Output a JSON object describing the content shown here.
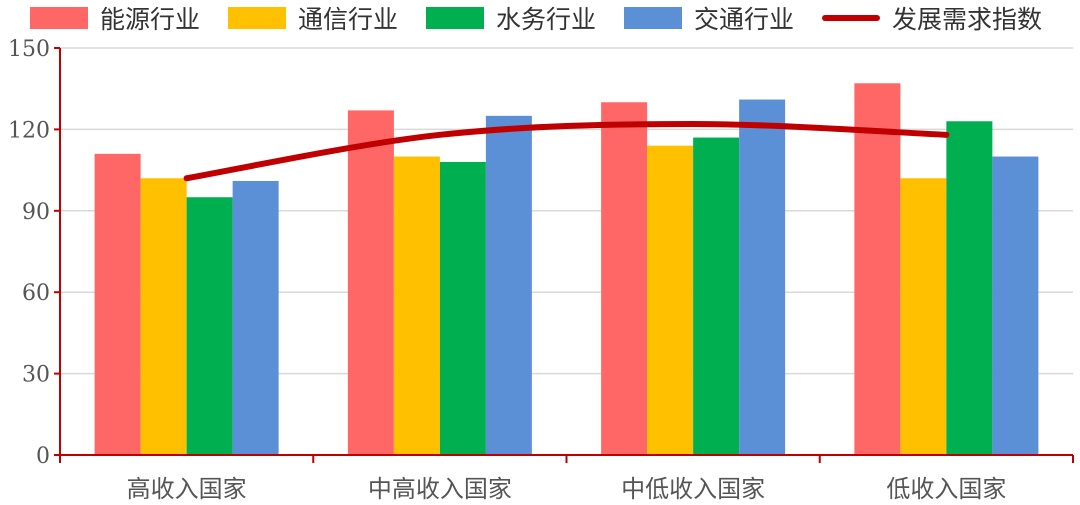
{
  "chart_data": {
    "type": "bar",
    "categories": [
      "高收入国家",
      "中高收入国家",
      "中低收入国家",
      "低收入国家"
    ],
    "series": [
      {
        "name": "能源行业",
        "kind": "bar",
        "color": "#FF6666",
        "values": [
          111,
          127,
          130,
          137
        ]
      },
      {
        "name": "通信行业",
        "kind": "bar",
        "color": "#FFC000",
        "values": [
          102,
          110,
          114,
          102
        ]
      },
      {
        "name": "水务行业",
        "kind": "bar",
        "color": "#00B050",
        "values": [
          95,
          108,
          117,
          123
        ]
      },
      {
        "name": "交通行业",
        "kind": "bar",
        "color": "#5B8FD6",
        "values": [
          101,
          125,
          131,
          110
        ]
      },
      {
        "name": "发展需求指数",
        "kind": "line",
        "smooth": true,
        "color": "#C00000",
        "values": [
          102,
          118,
          122,
          118
        ]
      }
    ],
    "ylim": [
      0,
      150
    ],
    "yticks": [
      0,
      30,
      60,
      90,
      120,
      150
    ],
    "grid": true,
    "legend_position": "top",
    "axis_color": "#C00000",
    "grid_color": "#D9D9D9"
  }
}
